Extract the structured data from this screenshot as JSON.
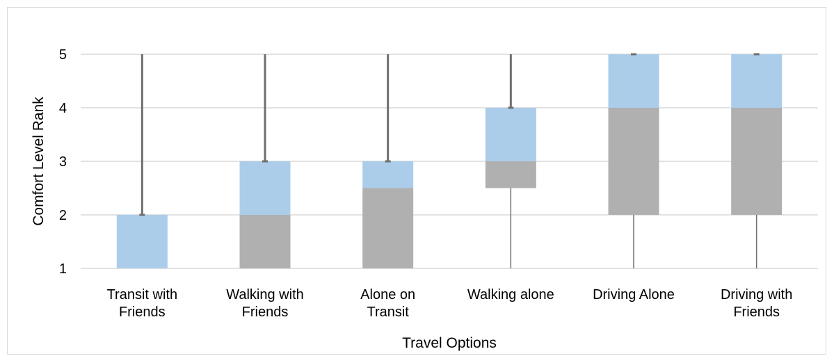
{
  "chart_data": {
    "type": "box",
    "title": "",
    "xlabel": "Travel Options",
    "ylabel": "Comfort Level  Rank",
    "ylim": [
      1,
      5
    ],
    "yticks": [
      "1",
      "2",
      "3",
      "4",
      "5"
    ],
    "grid": true,
    "categories": [
      [
        "Transit with",
        "Friends"
      ],
      [
        "Walking with",
        "Friends"
      ],
      [
        "Alone on",
        "Transit"
      ],
      [
        "Walking alone"
      ],
      [
        "Driving Alone"
      ],
      [
        "Driving with",
        "Friends"
      ]
    ],
    "boxes": [
      {
        "min": 1,
        "q1": 1,
        "median": 1,
        "q3": 2,
        "max": 5
      },
      {
        "min": 1,
        "q1": 1,
        "median": 2,
        "q3": 3,
        "max": 5
      },
      {
        "min": 1,
        "q1": 1,
        "median": 2.5,
        "q3": 3,
        "max": 5
      },
      {
        "min": 1,
        "q1": 2.5,
        "median": 3,
        "q3": 4,
        "max": 5
      },
      {
        "min": 1,
        "q1": 2,
        "median": 4,
        "q3": 5,
        "max": 5
      },
      {
        "min": 1,
        "q1": 2,
        "median": 4,
        "q3": 5,
        "max": 5
      }
    ],
    "colors": {
      "lower_box": "#b0b0b0",
      "upper_box": "#abcdea",
      "whisker": "#6f6f6f",
      "grid": "#d9d9d9"
    }
  }
}
